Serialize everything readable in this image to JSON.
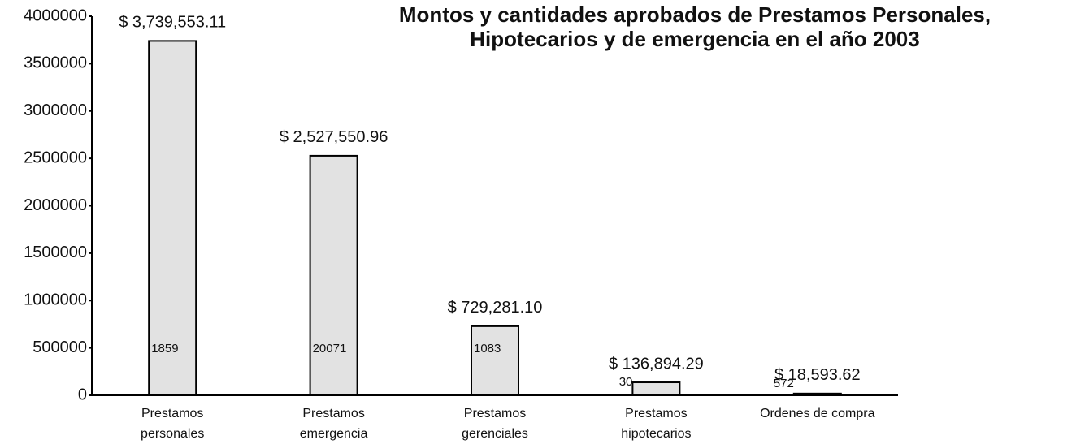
{
  "chart_data": {
    "type": "bar",
    "title": [
      "Montos y cantidades aprobados de Prestamos Personales,",
      "Hipotecarios y de emergencia en el  año 2003"
    ],
    "categories": [
      [
        "Prestamos",
        "personales"
      ],
      [
        "Prestamos",
        "emergencia"
      ],
      [
        "Prestamos",
        "gerenciales"
      ],
      [
        "Prestamos",
        "hipotecarios"
      ],
      [
        "Ordenes de compra"
      ]
    ],
    "values": [
      3739553.11,
      2527550.96,
      729281.1,
      136894.29,
      18593.62
    ],
    "value_labels": [
      "$ 3,739,553.11",
      "$ 2,527,550.96",
      "$ 729,281.10",
      "$ 136,894.29",
      "$ 18,593.62"
    ],
    "counts": [
      1859,
      20071,
      1083,
      30,
      572
    ],
    "color": "#e2e2e2",
    "ylim": [
      0,
      4000000
    ],
    "yticks": [
      0,
      500000,
      1000000,
      1500000,
      2000000,
      2500000,
      3000000,
      3500000,
      4000000
    ]
  }
}
